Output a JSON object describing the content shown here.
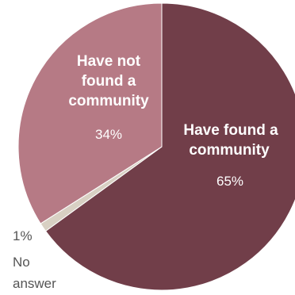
{
  "chart_data": {
    "type": "pie",
    "slices": [
      {
        "label_lines": [
          "Have found a",
          "community"
        ],
        "value": 65,
        "value_label": "65%",
        "color": "#713e49"
      },
      {
        "label_lines": [
          "No",
          "answer"
        ],
        "value": 1,
        "value_label": "1%",
        "color": "#d8d0c3"
      },
      {
        "label_lines": [
          "Have not",
          "found a",
          "community"
        ],
        "value": 34,
        "value_label": "34%",
        "color": "#b67a85"
      }
    ]
  }
}
